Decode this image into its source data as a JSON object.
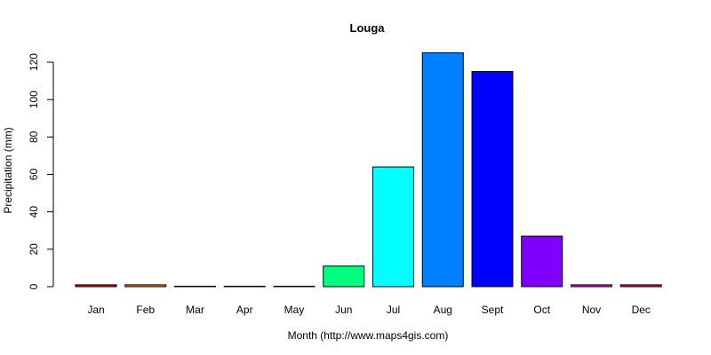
{
  "chart_data": {
    "type": "bar",
    "title": "Louga",
    "xlabel": "Month (http://www.maps4gis.com)",
    "ylabel": "Precipitation (mm)",
    "categories": [
      "Jan",
      "Feb",
      "Mar",
      "Apr",
      "May",
      "Jun",
      "Jul",
      "Aug",
      "Sept",
      "Oct",
      "Nov",
      "Dec"
    ],
    "values": [
      1,
      1,
      0,
      0,
      0,
      11,
      64,
      125,
      115,
      27,
      1,
      1
    ],
    "colors": [
      "#FF0000",
      "#FF8000",
      "#FFFF00",
      "#80FF00",
      "#00FF00",
      "#00FF80",
      "#00FFFF",
      "#0080FF",
      "#0000FF",
      "#8000FF",
      "#FF00FF",
      "#FF0080"
    ],
    "bar_border_color": "#000000",
    "ylim": [
      0,
      125
    ],
    "yticks": [
      0,
      20,
      40,
      60,
      80,
      100,
      120
    ],
    "grid": false,
    "legend": "none"
  }
}
